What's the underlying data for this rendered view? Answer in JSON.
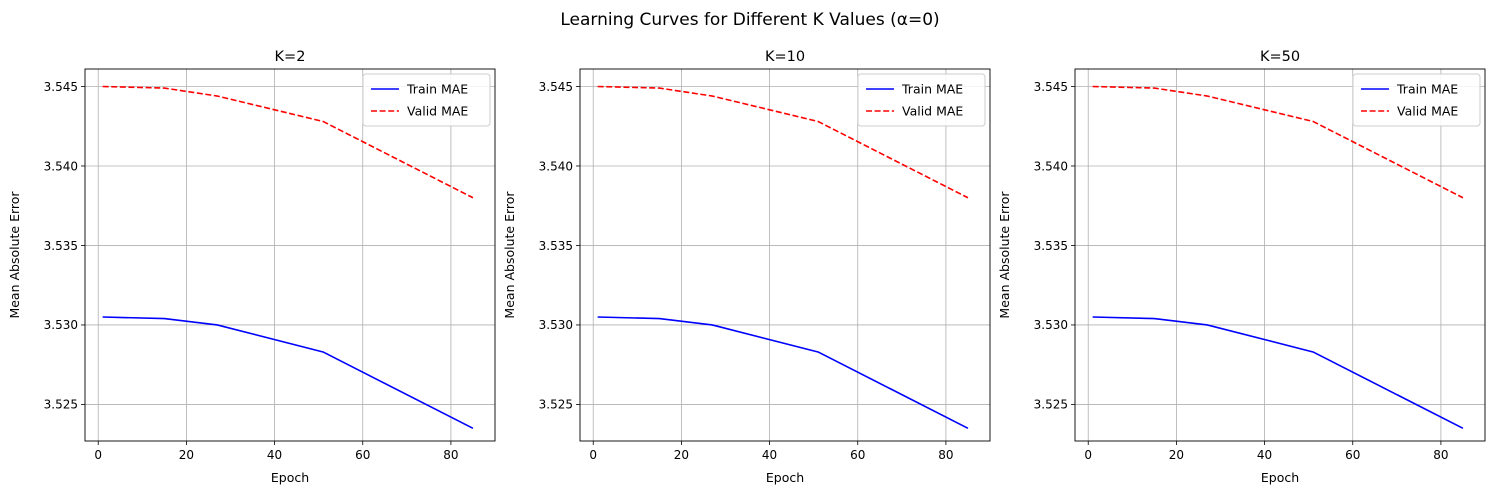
{
  "suptitle": "Learning Curves for Different K Values (α=0)",
  "colors": {
    "train": "#0000ff",
    "valid": "#ff0000",
    "grid": "#b0b0b0",
    "axes": "#000000"
  },
  "chart_data": [
    {
      "type": "line",
      "title": "K=2",
      "xlabel": "Epoch",
      "ylabel": "Mean Absolute Error",
      "xlim": [
        -3,
        90
      ],
      "ylim": [
        3.5227,
        3.5461
      ],
      "xticks": [
        0,
        20,
        40,
        60,
        80
      ],
      "yticks": [
        3.525,
        3.53,
        3.535,
        3.54,
        3.545
      ],
      "ytick_labels": [
        "3.525",
        "3.530",
        "3.535",
        "3.540",
        "3.545"
      ],
      "grid": true,
      "legend": "upper-right",
      "series": [
        {
          "name": "Train MAE",
          "style": "solid",
          "color": "#0000ff",
          "x": [
            1,
            15,
            27,
            51,
            85
          ],
          "y": [
            3.5305,
            3.5304,
            3.53,
            3.5283,
            3.5235
          ]
        },
        {
          "name": "Valid MAE",
          "style": "dashed",
          "color": "#ff0000",
          "x": [
            1,
            15,
            27,
            51,
            85
          ],
          "y": [
            3.545,
            3.5449,
            3.5444,
            3.5428,
            3.538
          ]
        }
      ]
    },
    {
      "type": "line",
      "title": "K=10",
      "xlabel": "Epoch",
      "ylabel": "Mean Absolute Error",
      "xlim": [
        -3,
        90
      ],
      "ylim": [
        3.5227,
        3.5461
      ],
      "xticks": [
        0,
        20,
        40,
        60,
        80
      ],
      "yticks": [
        3.525,
        3.53,
        3.535,
        3.54,
        3.545
      ],
      "ytick_labels": [
        "3.525",
        "3.530",
        "3.535",
        "3.540",
        "3.545"
      ],
      "grid": true,
      "legend": "upper-right",
      "series": [
        {
          "name": "Train MAE",
          "style": "solid",
          "color": "#0000ff",
          "x": [
            1,
            15,
            27,
            51,
            85
          ],
          "y": [
            3.5305,
            3.5304,
            3.53,
            3.5283,
            3.5235
          ]
        },
        {
          "name": "Valid MAE",
          "style": "dashed",
          "color": "#ff0000",
          "x": [
            1,
            15,
            27,
            51,
            85
          ],
          "y": [
            3.545,
            3.5449,
            3.5444,
            3.5428,
            3.538
          ]
        }
      ]
    },
    {
      "type": "line",
      "title": "K=50",
      "xlabel": "Epoch",
      "ylabel": "Mean Absolute Error",
      "xlim": [
        -3,
        90
      ],
      "ylim": [
        3.5227,
        3.5461
      ],
      "xticks": [
        0,
        20,
        40,
        60,
        80
      ],
      "yticks": [
        3.525,
        3.53,
        3.535,
        3.54,
        3.545
      ],
      "ytick_labels": [
        "3.525",
        "3.530",
        "3.535",
        "3.540",
        "3.545"
      ],
      "grid": true,
      "legend": "upper-right",
      "series": [
        {
          "name": "Train MAE",
          "style": "solid",
          "color": "#0000ff",
          "x": [
            1,
            15,
            27,
            51,
            85
          ],
          "y": [
            3.5305,
            3.5304,
            3.53,
            3.5283,
            3.5235
          ]
        },
        {
          "name": "Valid MAE",
          "style": "dashed",
          "color": "#ff0000",
          "x": [
            1,
            15,
            27,
            51,
            85
          ],
          "y": [
            3.545,
            3.5449,
            3.5444,
            3.5428,
            3.538
          ]
        }
      ]
    }
  ]
}
